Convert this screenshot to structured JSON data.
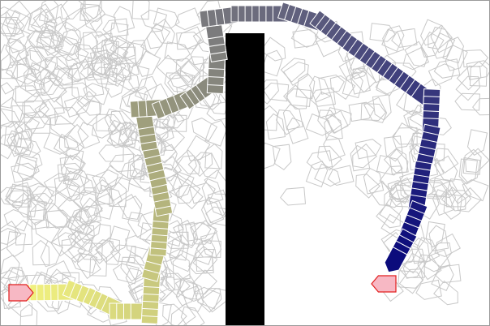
{
  "scene": {
    "colors": {
      "background": "#ffffff",
      "frame": "#9a9a9a",
      "explored_outline": "#c8c8c8",
      "obstacle": "#000000",
      "path_start": "#f6f67e",
      "path_end": "#0b0b7c",
      "start_fill": "#f7b8c4",
      "start_stroke": "#e21f1f",
      "goal_fill": "#f7b8c4",
      "goal_stroke": "#e21f1f",
      "path_stroke": "#ffffff"
    },
    "markers": {
      "start": {
        "shape": "pentagon-arrow",
        "heading": "east"
      },
      "goal": {
        "shape": "pentagon-arrow",
        "heading": "west"
      }
    }
  }
}
